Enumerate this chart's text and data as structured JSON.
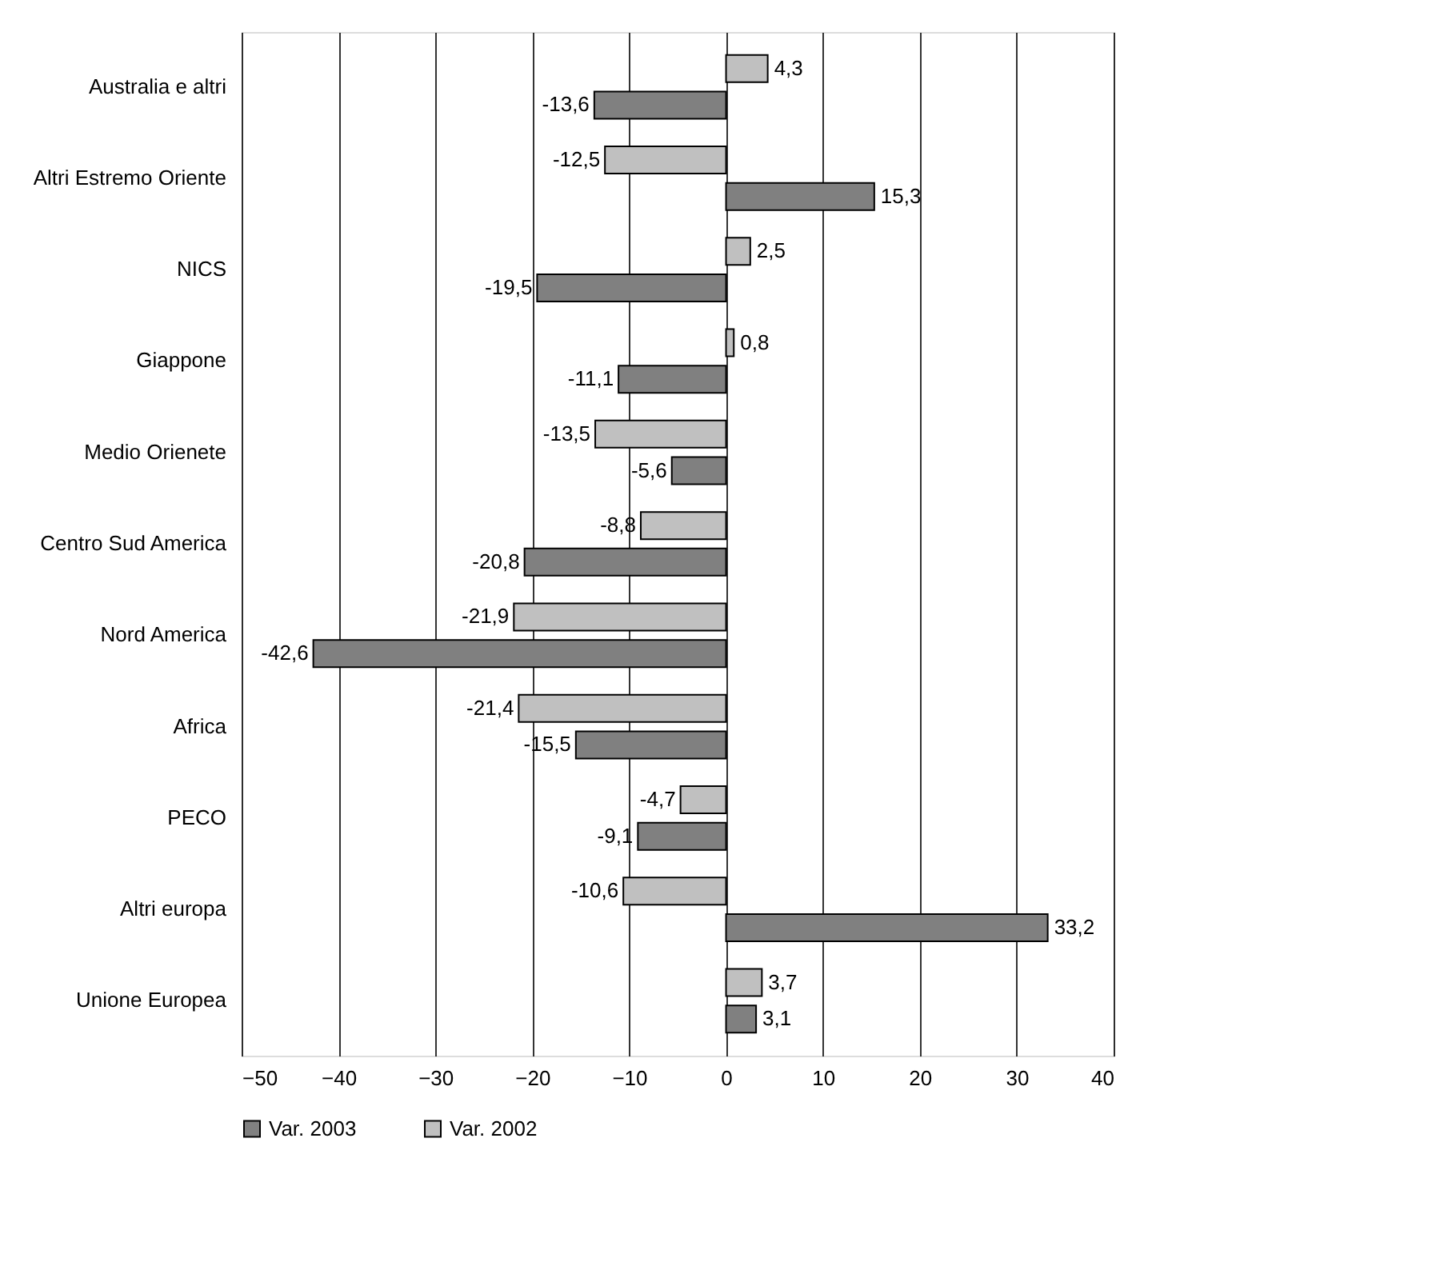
{
  "chart_data": {
    "type": "bar",
    "orientation": "horizontal",
    "categories": [
      "Australia e altri",
      "Altri Estremo Oriente",
      "NICS",
      "Giappone",
      "Medio Orienete",
      "Centro Sud America",
      "Nord America",
      "Africa",
      "PECO",
      "Altri europa",
      "Unione Europea"
    ],
    "series": [
      {
        "name": "Var. 2003",
        "color": "#808080",
        "values": [
          -13.6,
          15.3,
          -19.5,
          -11.1,
          -5.6,
          -20.8,
          -42.6,
          -15.5,
          -9.1,
          33.2,
          3.1
        ],
        "value_labels": [
          "-13,6",
          "15,3",
          "-19,5",
          "-11,1",
          "-5,6",
          "-20,8",
          "-42,6",
          "-15,5",
          "-9,1",
          "33,2",
          "3,1"
        ]
      },
      {
        "name": "Var. 2002",
        "color": "#c0c0c0",
        "values": [
          4.3,
          -12.5,
          2.5,
          0.8,
          -13.5,
          -8.8,
          -21.9,
          -21.4,
          -4.7,
          -10.6,
          3.7
        ],
        "value_labels": [
          "4,3",
          "-12,5",
          "2,5",
          "0,8",
          "-13,5",
          "-8,8",
          "-21,9",
          "-21,4",
          "-4,7",
          "-10,6",
          "3,7"
        ]
      }
    ],
    "xlim": [
      -50,
      40
    ],
    "xticks": [
      -50,
      -40,
      -30,
      -20,
      -10,
      0,
      10,
      20,
      30,
      40
    ],
    "grid": "x",
    "legend": "bottom"
  }
}
